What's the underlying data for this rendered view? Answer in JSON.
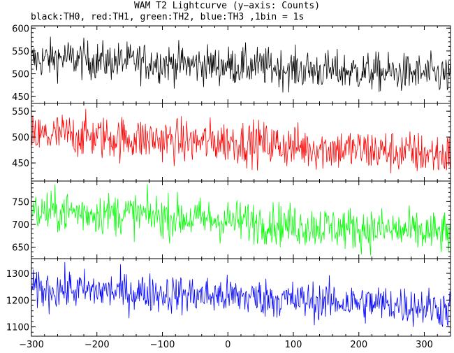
{
  "chart_data": {
    "type": "line",
    "title": "WAM T2 Lightcurve (y−axis: Counts)",
    "subtitle": "black:TH0, red:TH1, green:TH2, blue:TH3 ,1bin = 1s",
    "xlim": [
      -300,
      340
    ],
    "x_ticks": [
      -300,
      -200,
      -100,
      0,
      100,
      200,
      300
    ],
    "x_tick_labels": [
      "−300",
      "−200",
      "−100",
      "0",
      "100",
      "200",
      "300"
    ],
    "panels": [
      {
        "color": "#000000",
        "ylim": [
          435,
          605
        ],
        "y_ticks": [
          450,
          500,
          550,
          600
        ],
        "y_tick_labels": [
          "450",
          "500",
          "550",
          "600"
        ],
        "series": [
          {
            "x": [
              -300,
              -250,
              -200,
              -150,
              -100,
              -50,
              0,
              50,
              100,
              150,
              200,
              250,
              300,
              340
            ],
            "mean": [
              530,
              535,
              528,
              527,
              524,
              520,
              518,
              516,
              510,
              507,
              505,
              502,
              500,
              496
            ],
            "spread": 21
          }
        ]
      },
      {
        "color": "#ff0000",
        "ylim": [
          415,
          565
        ],
        "y_ticks": [
          450,
          500,
          550
        ],
        "y_tick_labels": [
          "450",
          "500",
          "550"
        ],
        "series": [
          {
            "x": [
              -300,
              -250,
              -200,
              -150,
              -100,
              -50,
              0,
              50,
              100,
              150,
              200,
              250,
              300,
              340
            ],
            "mean": [
              500,
              505,
              500,
              497,
              495,
              490,
              492,
              488,
              482,
              478,
              475,
              472,
              468,
              465
            ],
            "spread": 21
          }
        ]
      },
      {
        "color": "#00ff00",
        "ylim": [
          625,
          795
        ],
        "y_ticks": [
          650,
          700,
          750
        ],
        "y_tick_labels": [
          "650",
          "700",
          "750"
        ],
        "series": [
          {
            "x": [
              -300,
              -250,
              -200,
              -150,
              -100,
              -50,
              0,
              50,
              100,
              150,
              200,
              250,
              300,
              340
            ],
            "mean": [
              725,
              728,
              725,
              723,
              718,
              712,
              708,
              705,
              698,
              695,
              690,
              688,
              682,
              680
            ],
            "spread": 23
          }
        ]
      },
      {
        "color": "#0000ff",
        "ylim": [
          1065,
          1355
        ],
        "y_ticks": [
          1100,
          1200,
          1300
        ],
        "y_tick_labels": [
          "1100",
          "1200",
          "1300"
        ],
        "series": [
          {
            "x": [
              -300,
              -250,
              -200,
              -150,
              -100,
              -50,
              0,
              50,
              100,
              150,
              200,
              250,
              300,
              340
            ],
            "mean": [
              1235,
              1240,
              1235,
              1230,
              1225,
              1218,
              1215,
              1210,
              1200,
              1195,
              1190,
              1185,
              1175,
              1165
            ],
            "spread": 36
          }
        ]
      }
    ],
    "grid": false,
    "legend": "none"
  }
}
